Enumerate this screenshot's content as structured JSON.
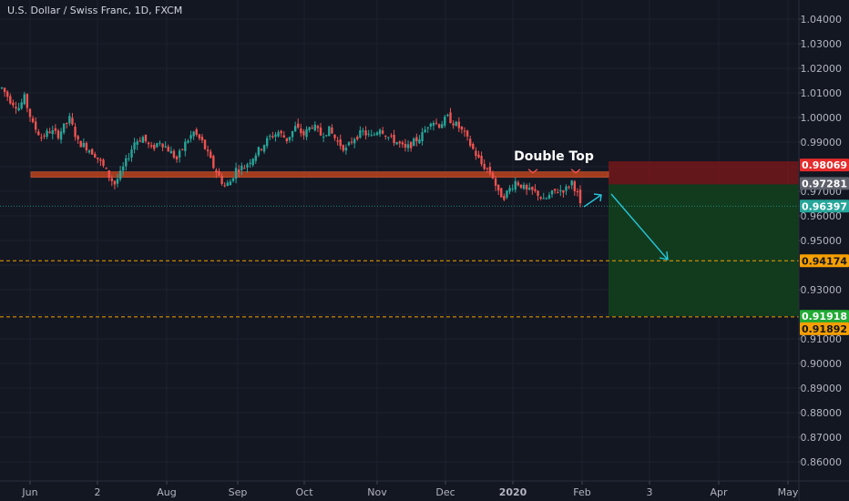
{
  "header": {
    "title": "U.S. Dollar / Swiss Franc, 1D, FXCM"
  },
  "colors": {
    "background": "#131722",
    "up": "#26a69a",
    "down": "#ef5350",
    "grid": "#1e222d",
    "axis_text": "#b2b5be",
    "resistance_zone": "#c8461c",
    "stop_zone": "#801818",
    "target_zone": "#123d1f",
    "arrow": "#26c6da",
    "dashed_orange": "#f59f00"
  },
  "chart_data": {
    "type": "candlestick",
    "symbol": "U.S. Dollar / Swiss Franc",
    "timeframe": "1D",
    "exchange": "FXCM",
    "x_tick_labels": [
      "Jun",
      "2",
      "Aug",
      "Sep",
      "Oct",
      "Nov",
      "Dec",
      "2020",
      "Feb",
      "3",
      "Apr",
      "May"
    ],
    "y_tick_labels": [
      "1.04000",
      "1.03000",
      "1.02000",
      "1.01000",
      "1.00000",
      "0.99000",
      "0.97000",
      "0.96000",
      "0.95000",
      "0.93000",
      "0.91000",
      "0.90000",
      "0.89000",
      "0.88000",
      "0.87000",
      "0.86000"
    ],
    "ylim": [
      0.855,
      1.045
    ],
    "annotations": {
      "double_top_label": "Double Top",
      "resistance_level": 0.9768
    },
    "price_labels": [
      {
        "value": "0.98069",
        "kind": "stop"
      },
      {
        "value": "0.97281",
        "kind": "entry"
      },
      {
        "value": "0.96397",
        "kind": "last"
      },
      {
        "value": "0.94174",
        "kind": "level"
      },
      {
        "value": "0.91918",
        "kind": "target"
      },
      {
        "value": "0.91892",
        "kind": "level"
      }
    ],
    "position": {
      "type": "short",
      "entry": 0.97281,
      "stop": 0.98069,
      "target": 0.91918
    },
    "horizontal_lines": [
      {
        "value": 0.94174,
        "style": "dashed"
      },
      {
        "value": 0.91892,
        "style": "dashed"
      },
      {
        "value": 0.96397,
        "style": "dotted"
      }
    ],
    "price_path": [
      [
        0,
        1.012
      ],
      [
        3,
        1.007
      ],
      [
        6,
        1.004
      ],
      [
        8,
        1.008
      ],
      [
        11,
        0.997
      ],
      [
        14,
        0.992
      ],
      [
        17,
        0.9945
      ],
      [
        20,
        0.993
      ],
      [
        24,
        0.9995
      ],
      [
        27,
        0.99
      ],
      [
        30,
        0.988
      ],
      [
        33,
        0.985
      ],
      [
        36,
        0.98
      ],
      [
        38,
        0.976
      ],
      [
        40,
        0.973
      ],
      [
        42,
        0.977
      ],
      [
        44,
        0.982
      ],
      [
        47,
        0.99
      ],
      [
        50,
        0.992
      ],
      [
        53,
        0.987
      ],
      [
        56,
        0.9905
      ],
      [
        59,
        0.987
      ],
      [
        62,
        0.983
      ],
      [
        65,
        0.9895
      ],
      [
        68,
        0.994
      ],
      [
        71,
        0.99
      ],
      [
        73,
        0.985
      ],
      [
        75,
        0.98
      ],
      [
        77,
        0.976
      ],
      [
        79,
        0.972
      ],
      [
        81,
        0.974
      ],
      [
        83,
        0.979
      ],
      [
        86,
        0.98
      ],
      [
        89,
        0.984
      ],
      [
        92,
        0.988
      ],
      [
        95,
        0.992
      ],
      [
        98,
        0.994
      ],
      [
        101,
        0.991
      ],
      [
        104,
        0.996
      ],
      [
        107,
        0.993
      ],
      [
        110,
        0.997
      ],
      [
        113,
        0.993
      ],
      [
        116,
        0.995
      ],
      [
        119,
        0.99
      ],
      [
        122,
        0.987
      ],
      [
        125,
        0.992
      ],
      [
        128,
        0.994
      ],
      [
        131,
        0.992
      ],
      [
        134,
        0.996
      ],
      [
        137,
        0.992
      ],
      [
        140,
        0.99
      ],
      [
        143,
        0.987
      ],
      [
        146,
        0.99
      ],
      [
        149,
        0.993
      ],
      [
        152,
        0.999
      ],
      [
        155,
        0.997
      ],
      [
        158,
        1.0
      ],
      [
        160,
        0.998
      ],
      [
        162,
        0.996
      ],
      [
        164,
        0.993
      ],
      [
        166,
        0.989
      ],
      [
        168,
        0.985
      ],
      [
        170,
        0.981
      ],
      [
        172,
        0.979
      ],
      [
        174,
        0.976
      ],
      [
        176,
        0.969
      ],
      [
        178,
        0.968
      ],
      [
        180,
        0.971
      ],
      [
        182,
        0.974
      ],
      [
        184,
        0.9725
      ],
      [
        186,
        0.97
      ],
      [
        188,
        0.97
      ],
      [
        190,
        0.969
      ],
      [
        192,
        0.966
      ],
      [
        194,
        0.968
      ],
      [
        196,
        0.97
      ],
      [
        198,
        0.9705
      ],
      [
        200,
        0.971
      ],
      [
        202,
        0.974
      ],
      [
        204,
        0.969
      ],
      [
        205,
        0.964
      ]
    ],
    "total_bars": 205
  }
}
